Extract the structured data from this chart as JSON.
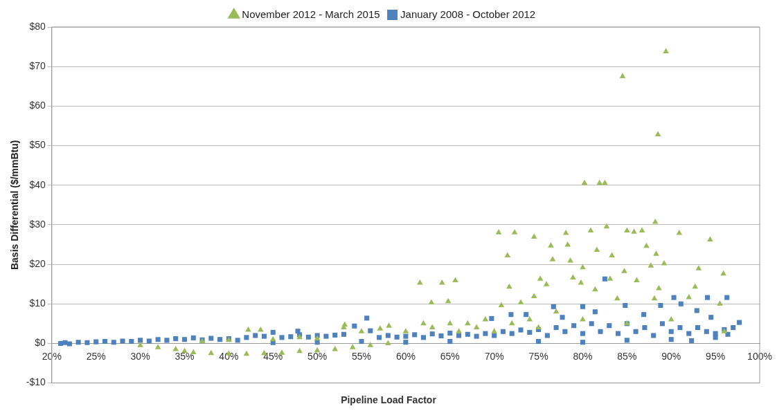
{
  "chart_data": {
    "type": "scatter",
    "xlabel": "Pipeline Load Factor",
    "ylabel": "Basis Differential ($/mmBtu)",
    "xlim": [
      20,
      100
    ],
    "xticks": [
      {
        "value": 20,
        "label": "20%"
      },
      {
        "value": 25,
        "label": "25%"
      },
      {
        "value": 30,
        "label": "30%"
      },
      {
        "value": 35,
        "label": "35%"
      },
      {
        "value": 40,
        "label": "40%"
      },
      {
        "value": 45,
        "label": "45%"
      },
      {
        "value": 50,
        "label": "50%"
      },
      {
        "value": 55,
        "label": "55%"
      },
      {
        "value": 60,
        "label": "60%"
      },
      {
        "value": 65,
        "label": "65%"
      },
      {
        "value": 70,
        "label": "70%"
      },
      {
        "value": 75,
        "label": "75%"
      },
      {
        "value": 80,
        "label": "80%"
      },
      {
        "value": 85,
        "label": "85%"
      },
      {
        "value": 90,
        "label": "90%"
      },
      {
        "value": 95,
        "label": "95%"
      },
      {
        "value": 100,
        "label": "100%"
      }
    ],
    "ylim": [
      -10,
      80
    ],
    "yticks": [
      {
        "value": -10,
        "label": "-$10"
      },
      {
        "value": 0,
        "label": "$0"
      },
      {
        "value": 10,
        "label": "$10"
      },
      {
        "value": 20,
        "label": "$20"
      },
      {
        "value": 30,
        "label": "$30"
      },
      {
        "value": 40,
        "label": "$40"
      },
      {
        "value": 50,
        "label": "$50"
      },
      {
        "value": 60,
        "label": "$60"
      },
      {
        "value": 70,
        "label": "$70"
      },
      {
        "value": 80,
        "label": "$80"
      }
    ],
    "grid": "y",
    "legend": "top",
    "series": [
      {
        "name": "November 2012 - March 2015",
        "color": "#9bbb59",
        "marker": "triangle",
        "x": [
          30,
          32,
          34,
          35,
          36,
          38,
          40,
          42,
          44,
          46,
          48,
          50,
          52,
          54,
          56,
          58,
          37,
          40,
          42.2,
          43.6,
          45,
          48,
          50,
          53,
          53.1,
          55,
          57.1,
          58.1,
          60,
          61.6,
          62,
          62.9,
          63,
          64.1,
          64.8,
          65,
          65.6,
          66,
          67,
          68,
          69,
          70,
          70.5,
          70.8,
          71.5,
          71.7,
          72,
          72.3,
          73,
          74,
          74.5,
          74.5,
          75.2,
          75.9,
          76.4,
          76.6,
          77,
          78.1,
          78.3,
          78.6,
          78.9,
          79.8,
          80,
          80.2,
          80.9,
          81.4,
          81.6,
          81.9,
          82.5,
          82.7,
          83.1,
          83.3,
          83.9,
          84.5,
          84.7,
          85,
          85.8,
          86.1,
          86.7,
          87.2,
          87.7,
          88.1,
          88.2,
          88.3,
          88.5,
          88.6,
          89.2,
          89.4,
          90.9,
          92,
          92.7,
          93.1,
          94.4,
          95.5,
          95.9,
          96,
          85,
          80,
          75,
          90
        ],
        "values": [
          -0.5,
          -1,
          -1.5,
          -2,
          -2.3,
          -2.5,
          -2.6,
          -2.7,
          -2.5,
          -2.4,
          -2,
          -1.8,
          -1.5,
          -1,
          -0.5,
          0,
          0.5,
          0.8,
          3.4,
          3.4,
          1,
          1.5,
          1.2,
          4,
          4.7,
          3,
          3.7,
          4.4,
          3,
          15.3,
          5,
          10.3,
          4,
          15.3,
          10.6,
          5,
          15.9,
          3,
          5,
          4,
          6,
          3,
          28,
          9.6,
          22.2,
          14.3,
          5,
          28,
          10.3,
          6,
          26.9,
          11.9,
          16.3,
          14.9,
          24.7,
          21.2,
          8,
          27.9,
          24.9,
          20.9,
          16.6,
          15.3,
          19.2,
          40.5,
          28.5,
          13.6,
          23.6,
          40.5,
          40.5,
          29.5,
          16.3,
          22.2,
          11.3,
          67.5,
          18.2,
          28.5,
          28.2,
          15.9,
          28.5,
          24.6,
          19.6,
          11.3,
          30.7,
          22.6,
          52.8,
          13.9,
          20.2,
          73.8,
          27.9,
          11.6,
          14.3,
          18.9,
          26.2,
          10,
          17.6,
          3,
          5,
          6,
          4,
          6
        ]
      },
      {
        "name": "January 2008 - October 2012",
        "color": "#4f81bd",
        "marker": "square",
        "x": [
          21,
          21.5,
          22,
          23,
          24,
          25,
          26,
          27,
          28,
          29,
          30,
          31,
          32,
          33,
          34,
          35,
          36,
          37,
          38,
          39,
          40,
          41,
          42,
          43,
          44,
          45,
          46,
          47,
          47.8,
          48,
          49,
          50,
          51,
          52,
          53,
          54.2,
          55.6,
          56,
          57,
          58,
          59,
          60,
          61,
          62,
          63,
          64,
          65,
          66,
          67,
          68,
          69,
          69.7,
          70,
          71,
          71.9,
          72,
          73,
          73.6,
          74,
          75,
          76,
          76.7,
          77,
          77.7,
          78,
          79,
          80,
          80,
          81,
          81.4,
          82,
          82.5,
          83,
          84,
          84.8,
          85,
          86,
          86.9,
          87,
          88,
          88.8,
          89,
          90,
          90.3,
          91,
          91.1,
          92,
          92.3,
          92.9,
          93,
          94,
          94.1,
          94.5,
          95,
          96,
          96.3,
          96.4,
          97,
          97.7,
          75,
          80,
          85,
          90,
          95,
          65,
          60,
          55,
          50,
          45
        ],
        "values": [
          0,
          0.2,
          -0.1,
          0.3,
          0.2,
          0.4,
          0.5,
          0.3,
          0.6,
          0.5,
          0.8,
          0.6,
          1,
          0.8,
          1.2,
          1,
          1.4,
          0.9,
          1.3,
          1,
          1.2,
          0.8,
          1.5,
          2,
          1.8,
          2.8,
          1.5,
          1.7,
          3.1,
          2.2,
          1.6,
          2,
          1.8,
          2.1,
          2.3,
          4.4,
          6.4,
          3.2,
          1.5,
          2,
          1.6,
          1.8,
          2.2,
          1.5,
          2.4,
          1.9,
          2.6,
          2,
          2.3,
          1.8,
          2.5,
          6.3,
          2,
          3,
          7.3,
          2.5,
          3.4,
          7.3,
          2.8,
          3.5,
          2,
          9.3,
          4,
          6.6,
          3,
          4.5,
          2.5,
          9.3,
          5,
          8,
          3,
          16.3,
          4.5,
          2.5,
          9.6,
          5,
          3,
          7.3,
          4,
          2,
          9.6,
          5,
          3,
          11.6,
          4,
          10,
          2.5,
          0.7,
          8.3,
          4,
          3,
          11.6,
          6.6,
          2.5,
          3.5,
          11.6,
          2.3,
          4,
          5.3,
          0.5,
          0.3,
          0.8,
          1,
          1.5,
          0.5,
          0.3,
          0.5,
          0.3,
          0.2
        ]
      }
    ]
  }
}
